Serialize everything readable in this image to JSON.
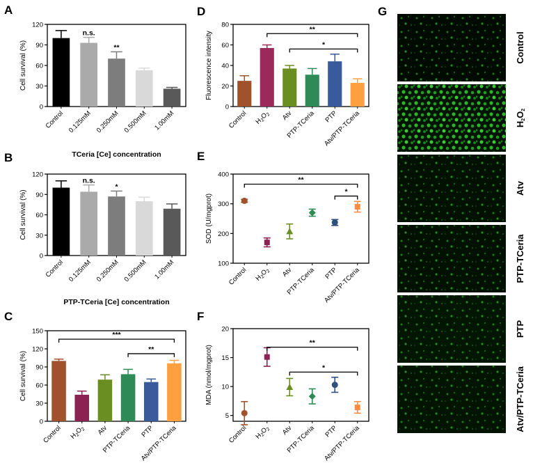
{
  "panels": {
    "A": {
      "letter": "A",
      "chart_data": {
        "type": "bar",
        "categories": [
          "Control",
          "0.125mM",
          "0.250mM",
          "0.500mM",
          "1.00mM"
        ],
        "values": [
          100,
          93,
          70,
          53,
          26
        ],
        "errors": [
          11,
          8,
          10,
          3,
          2
        ],
        "colors": [
          "#000000",
          "#aaaaaa",
          "#7d7d7d",
          "#d9d9d9",
          "#595959"
        ],
        "significance": [
          "",
          "n.s.",
          "**",
          "",
          ""
        ],
        "ylabel": "Cell survival (%)",
        "xlabel": "TCeria [Ce] concentration",
        "ylim": [
          0,
          120
        ],
        "yticks": [
          0,
          30,
          60,
          90,
          120
        ]
      }
    },
    "B": {
      "letter": "B",
      "chart_data": {
        "type": "bar",
        "categories": [
          "Control",
          "0.125mM",
          "0.250mM",
          "0.500mM",
          "1.00mM"
        ],
        "values": [
          100,
          94,
          87,
          80,
          69
        ],
        "errors": [
          10,
          10,
          8,
          6,
          7
        ],
        "colors": [
          "#000000",
          "#aaaaaa",
          "#7d7d7d",
          "#d9d9d9",
          "#595959"
        ],
        "significance": [
          "",
          "n.s.",
          "*",
          "",
          ""
        ],
        "ylabel": "Cell survival (%)",
        "xlabel": "PTP-TCeria [Ce] concentration",
        "ylim": [
          0,
          120
        ],
        "yticks": [
          0,
          30,
          60,
          90,
          120
        ]
      }
    },
    "C": {
      "letter": "C",
      "chart_data": {
        "type": "bar",
        "categories": [
          "Control",
          "H2O2",
          "Atv",
          "PTP-TCeria",
          "PTP",
          "Atv/PTP-TCeria"
        ],
        "values": [
          100,
          44,
          69,
          78,
          65,
          96
        ],
        "errors": [
          3,
          6,
          8,
          8,
          5,
          5
        ],
        "colors": [
          "#a0522d",
          "#8b2252",
          "#6b8e23",
          "#2e8b57",
          "#3a5a9b",
          "#ffa040"
        ],
        "ylabel": "Cell survival (%)",
        "ylim": [
          0,
          150
        ],
        "yticks": [
          0,
          30,
          60,
          90,
          120,
          150
        ],
        "brackets": [
          {
            "from": 0,
            "to": 5,
            "label": "***",
            "y": 136
          },
          {
            "from": 3,
            "to": 5,
            "label": "**",
            "y": 112
          }
        ]
      }
    },
    "D": {
      "letter": "D",
      "chart_data": {
        "type": "bar",
        "categories": [
          "Control",
          "H2O2",
          "Atv",
          "PTP-TCeria",
          "PTP",
          "Atv/PTP-TCeria"
        ],
        "values": [
          25,
          57,
          37,
          31,
          44,
          23
        ],
        "errors": [
          5,
          3,
          3,
          6,
          7,
          4
        ],
        "colors": [
          "#a0522d",
          "#9b2a5a",
          "#6b8e23",
          "#2e8b57",
          "#3a5a9b",
          "#ffa040"
        ],
        "ylabel": "Fluorescence intensity",
        "ylim": [
          0,
          80
        ],
        "yticks": [
          0,
          20,
          40,
          60,
          80
        ],
        "brackets": [
          {
            "from": 1,
            "to": 5,
            "label": "**",
            "y": 71
          },
          {
            "from": 2,
            "to": 5,
            "label": "*",
            "y": 56
          }
        ]
      }
    },
    "E": {
      "letter": "E",
      "chart_data": {
        "type": "scatter",
        "categories": [
          "Control",
          "H2O2",
          "Atv",
          "PTP-TCeria",
          "PTP",
          "Atv/PTP-TCeria"
        ],
        "values": [
          310,
          170,
          207,
          270,
          237,
          290
        ],
        "errors": [
          5,
          15,
          25,
          12,
          10,
          18
        ],
        "markers": [
          "circle",
          "square",
          "triangle",
          "diamond",
          "circle",
          "square"
        ],
        "colors": [
          "#a0522d",
          "#8b2252",
          "#6b8e23",
          "#2e8b57",
          "#2f4f7f",
          "#ff8c40"
        ],
        "ylabel": "SOD (U/mgprot)",
        "ylim": [
          100,
          400
        ],
        "yticks": [
          100,
          200,
          300,
          400
        ],
        "brackets": [
          {
            "from": 0,
            "to": 5,
            "label": "**",
            "y": 366
          },
          {
            "from": 4,
            "to": 5,
            "label": "*",
            "y": 326
          }
        ]
      }
    },
    "F": {
      "letter": "F",
      "chart_data": {
        "type": "scatter",
        "categories": [
          "Control",
          "H2O2",
          "Atv",
          "PTP-TCeria",
          "PTP",
          "Atv/PTP-TCeria"
        ],
        "values": [
          5.4,
          15.1,
          9.9,
          8.3,
          10.3,
          6.4
        ],
        "errors": [
          2.0,
          1.6,
          1.5,
          1.3,
          1.3,
          1.0
        ],
        "markers": [
          "circle",
          "square",
          "triangle",
          "diamond",
          "circle",
          "square"
        ],
        "colors": [
          "#a0522d",
          "#8b2252",
          "#6b8e23",
          "#2e8b57",
          "#2f4f7f",
          "#ff8c40"
        ],
        "ylabel": "MDA (nmol/mgprot)",
        "ylim": [
          4,
          20
        ],
        "yticks": [
          5,
          10,
          15,
          20
        ],
        "brackets": [
          {
            "from": 1,
            "to": 5,
            "label": "**",
            "y": 16.8
          },
          {
            "from": 2,
            "to": 5,
            "label": "*",
            "y": 12.5
          }
        ]
      }
    },
    "G": {
      "letter": "G",
      "rows": [
        "Control",
        "H2O2",
        "Atv",
        "PTP-TCeria",
        "PTP",
        "Atv/PTP-TCeria"
      ],
      "densities": [
        0.35,
        0.95,
        0.45,
        0.45,
        0.55,
        0.5
      ]
    }
  }
}
